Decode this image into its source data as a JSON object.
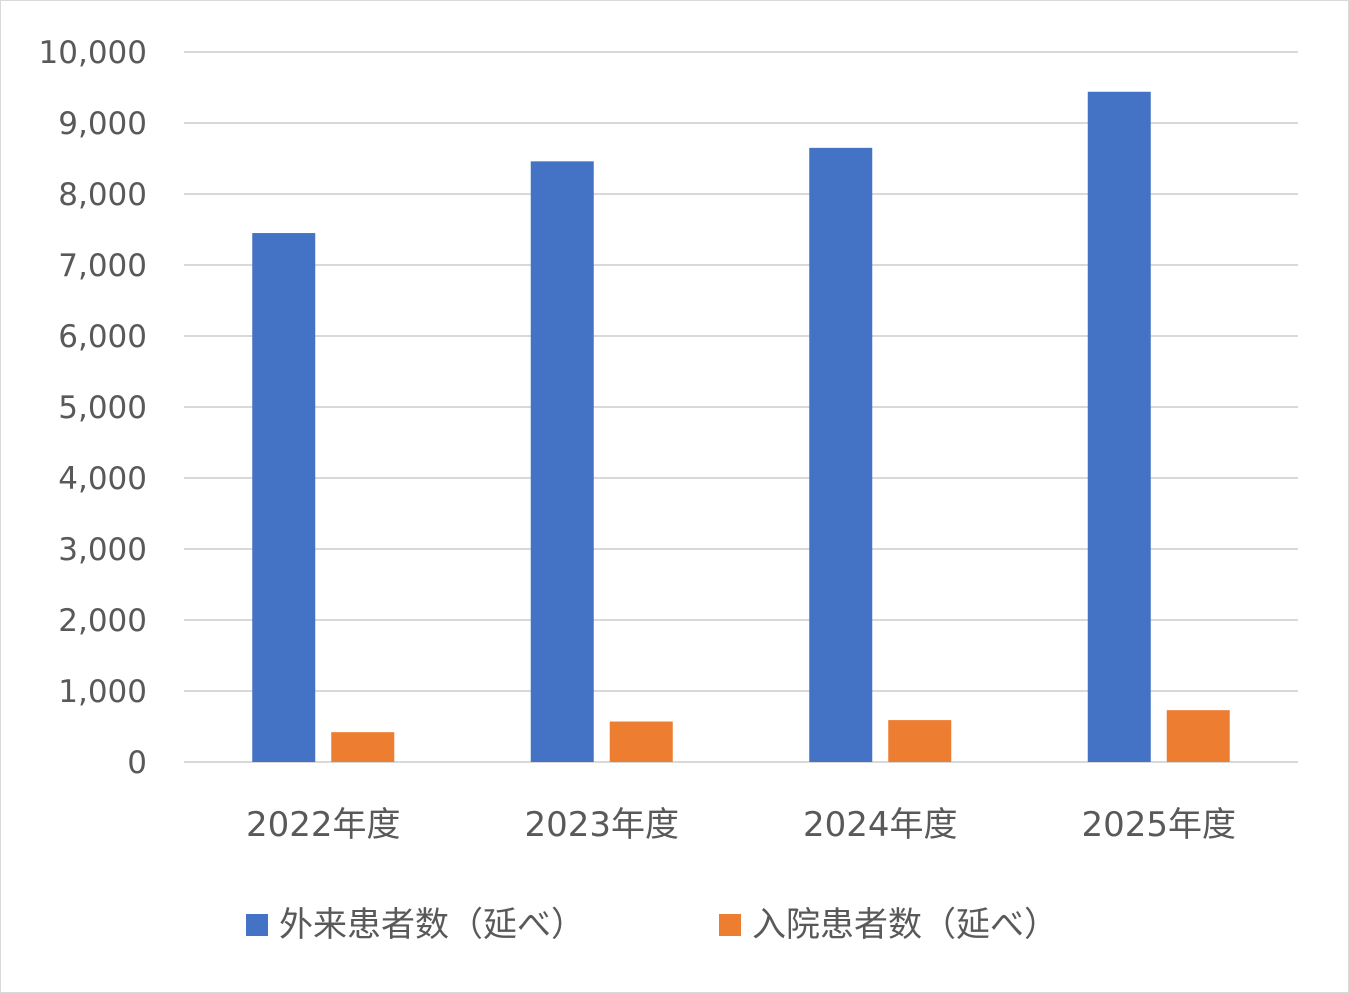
{
  "chart_data": {
    "type": "bar",
    "title": "",
    "xlabel": "",
    "ylabel": "",
    "categories": [
      "2022年度",
      "2023年度",
      "2024年度",
      "2025年度"
    ],
    "series": [
      {
        "name": "外来患者数（延べ）",
        "color": "#4472c4",
        "values": [
          7450,
          8460,
          8650,
          9440
        ]
      },
      {
        "name": "入院患者数（延べ）",
        "color": "#ed7d31",
        "values": [
          420,
          570,
          590,
          730
        ]
      }
    ],
    "ylim": [
      0,
      10000
    ],
    "yticks": [
      0,
      1000,
      2000,
      3000,
      4000,
      5000,
      6000,
      7000,
      8000,
      9000,
      10000
    ],
    "ytick_labels": [
      "0",
      "1,000",
      "2,000",
      "3,000",
      "4,000",
      "5,000",
      "6,000",
      "7,000",
      "8,000",
      "9,000",
      "10,000"
    ],
    "grid": true,
    "legend_position": "bottom"
  }
}
